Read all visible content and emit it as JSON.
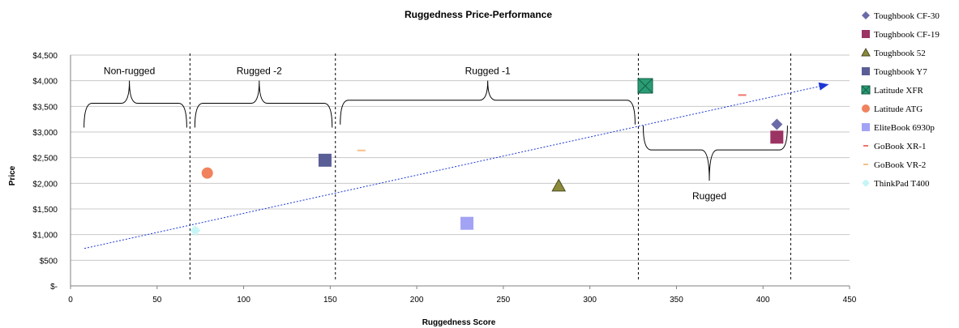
{
  "chart_data": {
    "type": "scatter",
    "title": "Ruggedness Price-Performance",
    "xlabel": "Ruggedness Score",
    "ylabel": "Price",
    "xlim": [
      0,
      450
    ],
    "ylim": [
      0,
      4500
    ],
    "x_ticks": [
      "0",
      "50",
      "100",
      "150",
      "200",
      "250",
      "300",
      "350",
      "400",
      "450"
    ],
    "y_ticks": [
      "$-",
      "$500",
      "$1,000",
      "$1,500",
      "$2,000",
      "$2,500",
      "$3,000",
      "$3,500",
      "$4,000",
      "$4,500"
    ],
    "grid": "horizontal",
    "legend_position": "right",
    "series": [
      {
        "name": "Toughbook CF-30",
        "marker": "diamond",
        "color": "#6a6aa8",
        "points": [
          [
            408,
            3150
          ]
        ]
      },
      {
        "name": "Toughbook CF-19",
        "marker": "square",
        "color": "#9b3363",
        "points": [
          [
            408,
            2900
          ]
        ]
      },
      {
        "name": "Toughbook 52",
        "marker": "triangle",
        "color": "#8b8b3a",
        "points": [
          [
            282,
            1950
          ]
        ]
      },
      {
        "name": "Toughbook Y7",
        "marker": "square",
        "color": "#5a5e96",
        "points": [
          [
            147,
            2450
          ]
        ]
      },
      {
        "name": "Latitude XFR",
        "marker": "square-x",
        "color": "#2a9c74",
        "points": [
          [
            332,
            3900
          ]
        ]
      },
      {
        "name": "Latitude ATG",
        "marker": "circle",
        "color": "#f0825e",
        "points": [
          [
            79,
            2200
          ]
        ]
      },
      {
        "name": "EliteBook 6930p",
        "marker": "square",
        "color": "#a3a3f5",
        "points": [
          [
            229,
            1220
          ]
        ]
      },
      {
        "name": "GoBook XR-1",
        "marker": "dash",
        "color": "#f0746e",
        "points": [
          [
            388,
            3720
          ]
        ]
      },
      {
        "name": "GoBook VR-2",
        "marker": "dash",
        "color": "#f5c08c",
        "points": [
          [
            168,
            2640
          ]
        ]
      },
      {
        "name": "ThinkPad T400",
        "marker": "star",
        "color": "#c5f5f5",
        "points": [
          [
            72,
            1080
          ]
        ]
      }
    ],
    "trendline": {
      "x": [
        8,
        438
      ],
      "y": [
        730,
        3930
      ],
      "color": "#1c36d6",
      "style": "dashed"
    },
    "segment_dividers": [
      69,
      153,
      328,
      416
    ],
    "segments": [
      {
        "label": "Non-rugged",
        "x_start": 5,
        "x_end": 69,
        "label_x": 34,
        "brace_y": 3560,
        "peak_y": 4000,
        "label_y": 4190
      },
      {
        "label": "Rugged -2",
        "x_start": 69,
        "x_end": 153,
        "label_x": 109,
        "brace_y": 3560,
        "peak_y": 4000,
        "label_y": 4190
      },
      {
        "label": "Rugged -1",
        "x_start": 153,
        "x_end": 328,
        "label_x": 241,
        "brace_y": 3620,
        "peak_y": 4000,
        "label_y": 4190
      },
      {
        "label": "Rugged",
        "x_start": 328,
        "x_end": 416,
        "label_x": 369,
        "brace_y": 2650,
        "peak_y": 2050,
        "label_y": 1750
      }
    ]
  }
}
